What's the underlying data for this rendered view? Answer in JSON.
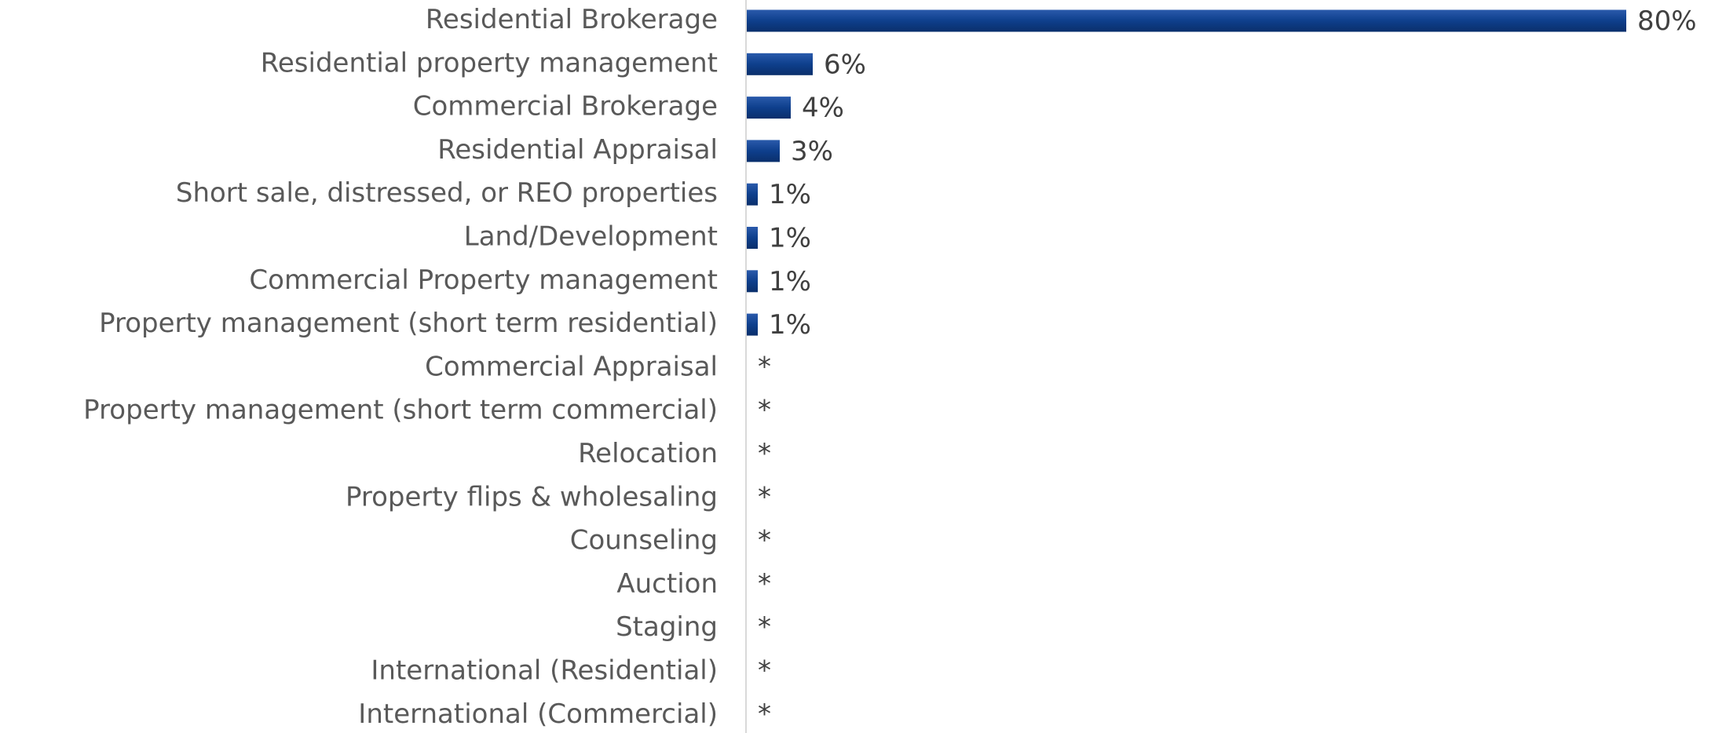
{
  "chart_data": {
    "type": "bar",
    "orientation": "horizontal",
    "categories": [
      "Residential Brokerage",
      "Residential property management",
      "Commercial Brokerage",
      "Residential Appraisal",
      "Short sale, distressed, or REO properties",
      "Land/Development",
      "Commercial Property management",
      "Property management (short term residential)",
      "Commercial Appraisal",
      "Property management (short term commercial)",
      "Relocation",
      "Property flips & wholesaling",
      "Counseling",
      "Auction",
      "Staging",
      "International (Residential)",
      "International (Commercial)"
    ],
    "values": [
      80,
      6,
      4,
      3,
      1,
      1,
      1,
      1,
      null,
      null,
      null,
      null,
      null,
      null,
      null,
      null,
      null
    ],
    "value_labels": [
      "80%",
      "6%",
      "4%",
      "3%",
      "1%",
      "1%",
      "1%",
      "1%",
      "*",
      "*",
      "*",
      "*",
      "*",
      "*",
      "*",
      "*",
      "*"
    ],
    "color": "#0e3f8c"
  }
}
